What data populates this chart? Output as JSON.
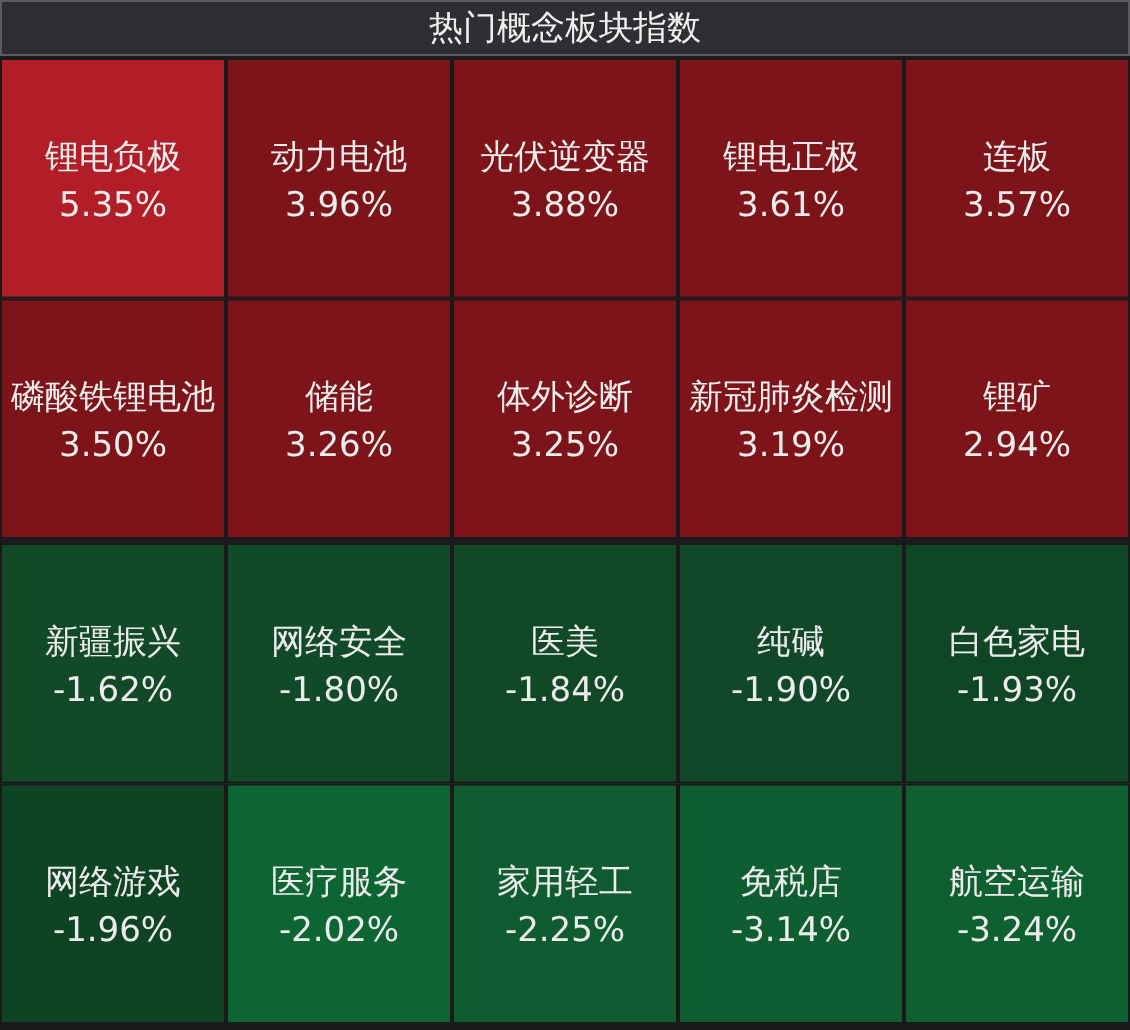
{
  "chart_data": {
    "type": "other",
    "title": "热门概念板块指数",
    "categories": [
      "锂电负极",
      "动力电池",
      "光伏逆变器",
      "锂电正极",
      "连板",
      "磷酸铁锂电池",
      "储能",
      "体外诊断",
      "新冠肺炎检测",
      "锂矿",
      "新疆振兴",
      "网络安全",
      "医美",
      "纯碱",
      "白色家电",
      "网络游戏",
      "医疗服务",
      "家用轻工",
      "免税店",
      "航空运输"
    ],
    "values": [
      5.35,
      3.96,
      3.88,
      3.61,
      3.57,
      3.5,
      3.26,
      3.25,
      3.19,
      2.94,
      -1.62,
      -1.8,
      -1.84,
      -1.9,
      -1.93,
      -1.96,
      -2.02,
      -2.25,
      -3.14,
      -3.24
    ],
    "value_labels": [
      "5.35%",
      "3.96%",
      "3.88%",
      "3.61%",
      "3.57%",
      "3.50%",
      "3.26%",
      "3.25%",
      "3.19%",
      "2.94%",
      "-1.62%",
      "-1.80%",
      "-1.84%",
      "-1.90%",
      "-1.93%",
      "-1.96%",
      "-2.02%",
      "-2.25%",
      "-3.14%",
      "-3.24%"
    ],
    "colors": [
      "#b21e28",
      "#7c1419",
      "#7c1419",
      "#7c1419",
      "#7c1419",
      "#7c1419",
      "#7c1419",
      "#7c1419",
      "#7c1419",
      "#7c1419",
      "#124a27",
      "#104a28",
      "#114826",
      "#11482a",
      "#0f4726",
      "#0e4424",
      "#0d6534",
      "#0f5c30",
      "#0e5e31",
      "#0e6030"
    ]
  }
}
